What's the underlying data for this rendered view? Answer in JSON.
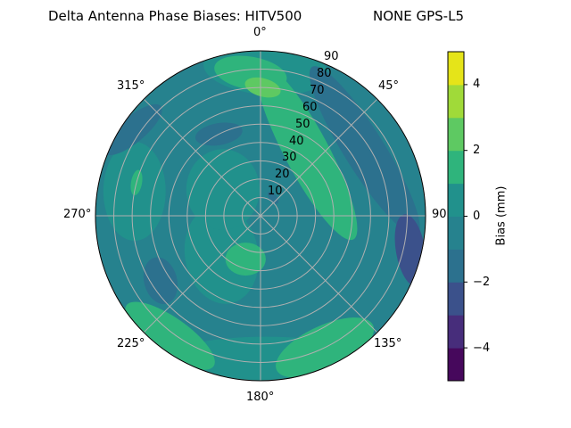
{
  "chart_data": {
    "type": "heatmap",
    "subtype": "polar-filled-contour",
    "title_left": "Delta Antenna Phase Biases: HITV500",
    "title_right": "NONE GPS-L5",
    "theta_direction": "clockwise",
    "theta_zero": "top",
    "theta_ticks": [
      "0°",
      "45°",
      "90",
      "135°",
      "180°",
      "225°",
      "270°",
      "315°"
    ],
    "r_ticks": [
      "10",
      "20",
      "30",
      "40",
      "50",
      "60",
      "70",
      "80",
      "90"
    ],
    "r_range": [
      0,
      90
    ],
    "grid": true,
    "colorbar": {
      "label": "Bias (mm)",
      "range": [
        -5,
        5
      ],
      "levels": [
        -5,
        -4,
        -3,
        -2,
        -1,
        0,
        1,
        2,
        3,
        4,
        5
      ],
      "ticks": [
        "4",
        "2",
        "0",
        "−2",
        "−4"
      ],
      "tick_values": [
        4,
        2,
        0,
        -2,
        -4
      ],
      "colors": [
        "#46085c",
        "#472d7b",
        "#3b518b",
        "#2c718e",
        "#26828e",
        "#21918c",
        "#2fb47c",
        "#5ec962",
        "#a0da39",
        "#e5e419"
      ],
      "colormap": "viridis",
      "position": "right"
    },
    "base_level": [
      -1,
      0
    ],
    "regions": [
      {
        "az": 2,
        "zen": 80,
        "a": 34,
        "b": 14,
        "rot": 5,
        "level": [
          0,
          1
        ]
      },
      {
        "az": 178,
        "zen": 80,
        "a": 58,
        "b": 14,
        "rot": 0,
        "level": [
          0,
          1
        ]
      },
      {
        "az": 225,
        "zen": 30,
        "a": 27,
        "b": 20,
        "rot": 80,
        "level": [
          0,
          1
        ]
      },
      {
        "az": 305,
        "zen": 25,
        "a": 20,
        "b": 22,
        "rot": 0,
        "level": [
          0,
          1
        ]
      },
      {
        "az": 281,
        "zen": 70,
        "a": 17,
        "b": 27,
        "rot": 0,
        "level": [
          0,
          1
        ]
      },
      {
        "az": 304,
        "zen": 84,
        "a": 20,
        "b": 7,
        "rot": -40,
        "level": [
          -2,
          -1
        ]
      },
      {
        "az": 58,
        "zen": 67,
        "a": 54,
        "b": 11,
        "rot": 58,
        "level": [
          -2,
          -1
        ]
      },
      {
        "az": 333,
        "zen": 50,
        "a": 13,
        "b": 6,
        "rot": -10,
        "level": [
          -2,
          -1
        ]
      },
      {
        "az": 237,
        "zen": 65,
        "a": 9,
        "b": 13,
        "rot": -15,
        "level": [
          -2,
          -1
        ]
      },
      {
        "az": 35,
        "zen": 12,
        "a": 4,
        "b": 2,
        "rot": 50,
        "level": [
          -2,
          -1
        ]
      },
      {
        "az": 103,
        "zen": 84,
        "a": 20,
        "b": 8,
        "rot": 80,
        "level": [
          -3,
          -2
        ]
      },
      {
        "az": 36,
        "zen": 43,
        "a": 54,
        "b": 12,
        "rot": 62,
        "level": [
          1,
          2
        ]
      },
      {
        "az": 356,
        "zen": 78,
        "a": 20,
        "b": 9,
        "rot": 10,
        "level": [
          1,
          2
        ]
      },
      {
        "az": 199,
        "zen": 25,
        "a": 11,
        "b": 9,
        "rot": 0,
        "level": [
          1,
          2
        ]
      },
      {
        "az": 154,
        "zen": 80,
        "a": 29,
        "b": 12,
        "rot": -25,
        "level": [
          1,
          2
        ]
      },
      {
        "az": 217,
        "zen": 82,
        "a": 29,
        "b": 10,
        "rot": 35,
        "level": [
          1,
          2
        ]
      },
      {
        "az": 285,
        "zen": 70,
        "a": 3,
        "b": 7,
        "rot": 10,
        "level": [
          1,
          2
        ]
      },
      {
        "az": 1,
        "zen": 70,
        "a": 10,
        "b": 5,
        "rot": 15,
        "level": [
          2,
          3
        ]
      }
    ]
  }
}
